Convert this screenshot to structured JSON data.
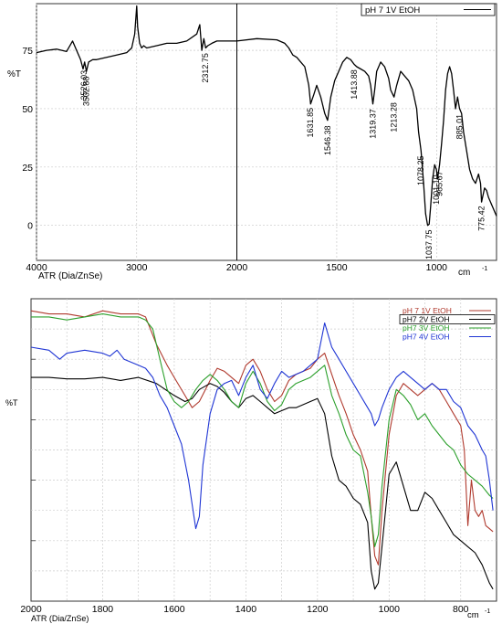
{
  "chart_data": [
    {
      "type": "line",
      "title": "",
      "xlabel": "ATR (Dia/ZnSe)",
      "xunit": "cm",
      "xunit_exp": "-1",
      "ylabel": "%T",
      "xlim": [
        4000,
        700
      ],
      "ylim": [
        -15,
        95
      ],
      "x_ticks": [
        4000,
        3000,
        2000,
        1500,
        1000
      ],
      "x_tick_labels": [
        "4000",
        "3000",
        "2000",
        "1500",
        "1000"
      ],
      "y_ticks": [
        75,
        50,
        25,
        0
      ],
      "y_tick_labels": [
        "75",
        "50",
        "25",
        "0"
      ],
      "grid": true,
      "legend_position": "top-right",
      "series": [
        {
          "name": "pH 7 1V EtOH",
          "color": "#000000",
          "x": [
            4000,
            3900,
            3800,
            3700,
            3640,
            3600,
            3560,
            3535,
            3520,
            3502,
            3480,
            3440,
            3400,
            3300,
            3200,
            3100,
            3050,
            3020,
            3000,
            2990,
            2970,
            2950,
            2930,
            2900,
            2850,
            2800,
            2700,
            2600,
            2500,
            2400,
            2370,
            2350,
            2330,
            2312,
            2290,
            2250,
            2200,
            2100,
            2000,
            1900,
            1800,
            1760,
            1740,
            1720,
            1700,
            1680,
            1660,
            1640,
            1631,
            1615,
            1600,
            1580,
            1560,
            1546,
            1530,
            1510,
            1490,
            1470,
            1450,
            1430,
            1413,
            1400,
            1380,
            1360,
            1340,
            1330,
            1319,
            1310,
            1300,
            1280,
            1260,
            1240,
            1230,
            1213,
            1200,
            1180,
            1160,
            1140,
            1120,
            1100,
            1090,
            1078,
            1065,
            1055,
            1045,
            1037,
            1030,
            1020,
            1010,
            1001,
            995,
            985,
            975,
            965,
            955,
            945,
            935,
            925,
            915,
            905,
            895,
            885,
            875,
            865,
            850,
            835,
            820,
            805,
            790,
            780,
            775,
            770,
            760,
            750,
            740,
            730,
            720,
            710,
            700
          ],
          "y": [
            74,
            75,
            75.5,
            74.5,
            79,
            75,
            71,
            67,
            70,
            66,
            70,
            71,
            71,
            72,
            73,
            74,
            76,
            82,
            94,
            85,
            78,
            76,
            77,
            76,
            76.5,
            77,
            78,
            78,
            79,
            82,
            86,
            75,
            80,
            76,
            77,
            78,
            79,
            79,
            79,
            80,
            79.5,
            78,
            76,
            73,
            72,
            70,
            68,
            60,
            52,
            56,
            60,
            55,
            48,
            45,
            55,
            62,
            66,
            70,
            72,
            71,
            69,
            68,
            67,
            66,
            64,
            60,
            52,
            58,
            66,
            70,
            68,
            63,
            58,
            55,
            60,
            66,
            64,
            62,
            58,
            50,
            40,
            32,
            18,
            5,
            0,
            0.5,
            8,
            20,
            26,
            24,
            20,
            26,
            35,
            45,
            58,
            65,
            68,
            65,
            58,
            50,
            55,
            50,
            48,
            40,
            32,
            24,
            20,
            18,
            22,
            18,
            10,
            12,
            16,
            15,
            12,
            10,
            8,
            6,
            4
          ]
        }
      ],
      "annotations": [
        "3526.03",
        "3502.88",
        "2312.75",
        "1631.85",
        "1546.38",
        "1413.88",
        "1319.37",
        "1213.28",
        "1078.25",
        "1037.75",
        "1001.10",
        "985.67",
        "885.01",
        "775.42"
      ]
    },
    {
      "type": "line",
      "title": "",
      "xlabel": "ATR (Dia/ZnSe)",
      "xunit": "cm",
      "xunit_exp": "-1",
      "ylabel": "%T",
      "xlim": [
        2000,
        700
      ],
      "ylim": [
        0,
        100
      ],
      "x_ticks": [
        2000,
        1800,
        1600,
        1400,
        1200,
        1000,
        800
      ],
      "x_tick_labels": [
        "2000",
        "1800",
        "1600",
        "1400",
        "1200",
        "1000",
        "800"
      ],
      "grid": true,
      "legend_position": "top-right",
      "series": [
        {
          "name": "pH 7 1V EtOH",
          "color": "#b03a2e",
          "x": [
            2000,
            1950,
            1900,
            1850,
            1800,
            1750,
            1700,
            1680,
            1650,
            1620,
            1600,
            1570,
            1550,
            1530,
            1500,
            1480,
            1460,
            1440,
            1420,
            1400,
            1380,
            1360,
            1340,
            1320,
            1300,
            1280,
            1260,
            1240,
            1220,
            1200,
            1180,
            1160,
            1140,
            1120,
            1100,
            1080,
            1060,
            1050,
            1040,
            1030,
            1020,
            1000,
            980,
            960,
            940,
            920,
            900,
            880,
            860,
            840,
            820,
            800,
            790,
            780,
            770,
            760,
            750,
            740,
            730,
            720,
            710
          ],
          "y": [
            96,
            95,
            95,
            94,
            96,
            95,
            95,
            94,
            85,
            78,
            74,
            68,
            64,
            66,
            73,
            77,
            76,
            74,
            72,
            78,
            80,
            76,
            70,
            66,
            68,
            73,
            75,
            76,
            77,
            80,
            82,
            75,
            68,
            62,
            55,
            50,
            43,
            28,
            15,
            12,
            30,
            55,
            68,
            72,
            70,
            68,
            70,
            72,
            70,
            66,
            62,
            58,
            50,
            25,
            40,
            30,
            28,
            30,
            25,
            24,
            23
          ]
        },
        {
          "name": "pH7 2V EtOH",
          "color": "#000000",
          "x": [
            2000,
            1950,
            1900,
            1850,
            1800,
            1750,
            1700,
            1650,
            1600,
            1570,
            1550,
            1530,
            1500,
            1480,
            1460,
            1440,
            1420,
            1400,
            1380,
            1360,
            1340,
            1320,
            1300,
            1280,
            1260,
            1240,
            1220,
            1200,
            1180,
            1160,
            1140,
            1120,
            1100,
            1080,
            1060,
            1050,
            1040,
            1030,
            1020,
            1000,
            980,
            960,
            940,
            920,
            900,
            880,
            860,
            840,
            820,
            800,
            780,
            760,
            740,
            720,
            710
          ],
          "y": [
            74,
            74,
            73.5,
            73.5,
            74,
            73,
            74,
            72,
            68,
            66,
            67,
            70,
            72,
            71,
            69,
            66,
            64,
            67,
            68,
            66,
            64,
            62,
            63,
            64,
            64,
            65,
            66,
            67,
            62,
            48,
            40,
            38,
            34,
            32,
            26,
            10,
            4,
            6,
            18,
            42,
            46,
            38,
            30,
            30,
            36,
            34,
            30,
            26,
            22,
            20,
            18,
            16,
            12,
            6,
            4
          ]
        },
        {
          "name": "pH7 3V EtOH",
          "color": "#2ca02c",
          "x": [
            2000,
            1950,
            1900,
            1850,
            1800,
            1750,
            1700,
            1680,
            1660,
            1640,
            1620,
            1600,
            1580,
            1560,
            1540,
            1520,
            1500,
            1480,
            1460,
            1440,
            1420,
            1400,
            1380,
            1360,
            1340,
            1320,
            1300,
            1280,
            1260,
            1240,
            1220,
            1200,
            1180,
            1160,
            1140,
            1120,
            1100,
            1080,
            1060,
            1050,
            1040,
            1030,
            1020,
            1000,
            980,
            960,
            940,
            920,
            900,
            880,
            860,
            840,
            820,
            800,
            780,
            760,
            740,
            720,
            710
          ],
          "y": [
            94,
            94,
            93,
            94,
            95,
            94,
            94,
            93,
            90,
            80,
            70,
            66,
            64,
            66,
            70,
            73,
            75,
            73,
            70,
            66,
            64,
            72,
            76,
            72,
            66,
            63,
            65,
            70,
            72,
            73,
            74,
            76,
            78,
            68,
            62,
            55,
            50,
            48,
            36,
            28,
            18,
            22,
            38,
            60,
            70,
            68,
            65,
            60,
            62,
            58,
            55,
            52,
            50,
            45,
            42,
            40,
            38,
            35,
            34
          ]
        },
        {
          "name": "pH7 4V EtOH",
          "color": "#1f35d4",
          "x": [
            2000,
            1950,
            1920,
            1900,
            1850,
            1800,
            1780,
            1760,
            1740,
            1720,
            1700,
            1680,
            1660,
            1640,
            1620,
            1600,
            1580,
            1560,
            1550,
            1540,
            1530,
            1520,
            1500,
            1480,
            1460,
            1440,
            1420,
            1400,
            1380,
            1360,
            1340,
            1320,
            1300,
            1280,
            1260,
            1240,
            1220,
            1200,
            1180,
            1160,
            1140,
            1120,
            1100,
            1080,
            1060,
            1050,
            1040,
            1030,
            1020,
            1000,
            980,
            960,
            940,
            920,
            900,
            880,
            860,
            840,
            820,
            800,
            780,
            760,
            740,
            730,
            720,
            710
          ],
          "y": [
            84,
            83,
            80,
            82,
            83,
            82,
            81,
            83,
            80,
            79,
            78,
            77,
            74,
            68,
            64,
            58,
            52,
            40,
            32,
            24,
            28,
            45,
            62,
            70,
            72,
            73,
            68,
            74,
            78,
            70,
            67,
            72,
            76,
            74,
            75,
            76,
            78,
            80,
            92,
            84,
            80,
            76,
            72,
            68,
            64,
            62,
            58,
            60,
            64,
            70,
            74,
            76,
            74,
            72,
            70,
            72,
            70,
            70,
            66,
            64,
            58,
            55,
            50,
            48,
            40,
            30
          ]
        }
      ]
    }
  ]
}
